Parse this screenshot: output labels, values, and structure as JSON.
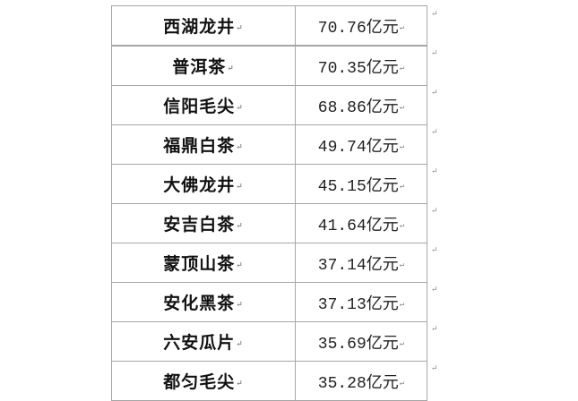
{
  "paragraph_mark": "↵",
  "table": {
    "rows": [
      {
        "name": "西湖龙井",
        "value": "70.76亿元"
      },
      {
        "name": "普洱茶",
        "value": "70.35亿元"
      },
      {
        "name": "信阳毛尖",
        "value": "68.86亿元"
      },
      {
        "name": "福鼎白茶",
        "value": "49.74亿元"
      },
      {
        "name": "大佛龙井",
        "value": "45.15亿元"
      },
      {
        "name": "安吉白茶",
        "value": "41.64亿元"
      },
      {
        "name": "蒙顶山茶",
        "value": "37.14亿元"
      },
      {
        "name": "安化黑茶",
        "value": "37.13亿元"
      },
      {
        "name": "六安瓜片",
        "value": "35.69亿元"
      },
      {
        "name": "都匀毛尖",
        "value": "35.28亿元"
      }
    ]
  }
}
